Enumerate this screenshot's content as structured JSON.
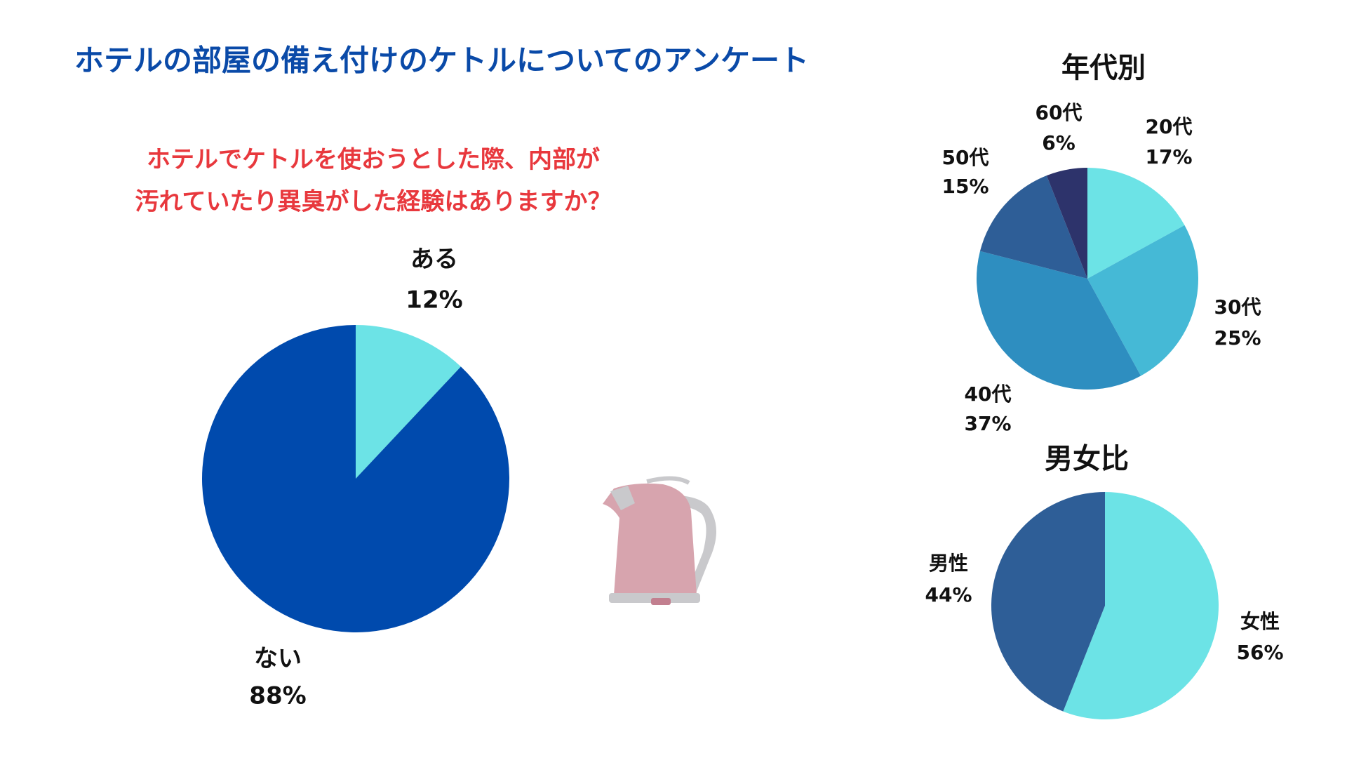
{
  "title": "ホテルの部屋の備え付けのケトルについてのアンケート",
  "chart_data": [
    {
      "type": "pie",
      "title": [
        "ホテルでケトルを使おうとした際、内部が",
        "汚れていたり異臭がした経験はありますか？"
      ],
      "categories": [
        "ある",
        "ない"
      ],
      "values": [
        12,
        88
      ],
      "value_labels": [
        "12%",
        "88%"
      ],
      "colors": [
        "#6ce3e6",
        "#004aad"
      ]
    },
    {
      "type": "pie",
      "title": "年代別",
      "categories": [
        "20代",
        "30代",
        "40代",
        "50代",
        "60代"
      ],
      "values": [
        17,
        25,
        37,
        15,
        6
      ],
      "value_labels": [
        "17%",
        "25%",
        "37%",
        "15%",
        "6%"
      ],
      "colors": [
        "#6ce3e6",
        "#45b9d6",
        "#2e8ec0",
        "#2e5e97",
        "#2d336b"
      ]
    },
    {
      "type": "pie",
      "title": "男女比",
      "categories": [
        "女性",
        "男性"
      ],
      "values": [
        56,
        44
      ],
      "value_labels": [
        "56%",
        "44%"
      ],
      "colors": [
        "#6ce3e6",
        "#2e5e97"
      ]
    }
  ]
}
